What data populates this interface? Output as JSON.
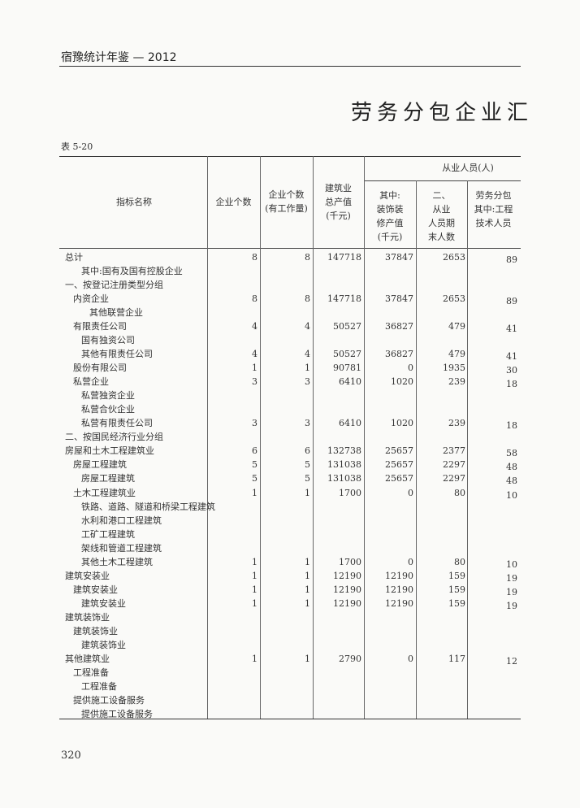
{
  "header": {
    "title": "宿豫统计年鉴 — 2012"
  },
  "title": "劳务分包企业汇",
  "table": {
    "label": "表 5-20",
    "group": "从业人员(人)",
    "columns": [
      [
        "指标名称"
      ],
      [
        "企业个数"
      ],
      [
        "企业个数",
        "(有工作量)"
      ],
      [
        "建筑业",
        "总产值",
        "(千元)"
      ],
      [
        "其中:",
        "装饰装",
        "修产值",
        "(千元)"
      ],
      [
        "二、",
        "从业",
        "人员期",
        "末人数"
      ],
      [
        "劳务分包",
        "其中:工程",
        "技术人员"
      ]
    ],
    "rows": [
      [
        "总计",
        8,
        8,
        147718,
        37847,
        2653,
        89
      ],
      [
        "其中:国有及国有控股企业",
        null,
        null,
        null,
        null,
        null,
        null
      ],
      [
        "一、按登记注册类型分组",
        null,
        null,
        null,
        null,
        null,
        null
      ],
      [
        "内资企业",
        8,
        8,
        147718,
        37847,
        2653,
        89
      ],
      [
        "其他联营企业",
        null,
        null,
        null,
        null,
        null,
        null
      ],
      [
        "有限责任公司",
        4,
        4,
        50527,
        36827,
        479,
        41
      ],
      [
        "国有独资公司",
        null,
        null,
        null,
        null,
        null,
        null
      ],
      [
        "其他有限责任公司",
        4,
        4,
        50527,
        36827,
        479,
        41
      ],
      [
        "股份有限公司",
        1,
        1,
        90781,
        0,
        1935,
        30
      ],
      [
        "私营企业",
        3,
        3,
        6410,
        1020,
        239,
        18
      ],
      [
        "私营独资企业",
        null,
        null,
        null,
        null,
        null,
        null
      ],
      [
        "私营合伙企业",
        null,
        null,
        null,
        null,
        null,
        null
      ],
      [
        "私营有限责任公司",
        3,
        3,
        6410,
        1020,
        239,
        18
      ],
      [
        "二、按国民经济行业分组",
        null,
        null,
        null,
        null,
        null,
        null
      ],
      [
        "房屋和土木工程建筑业",
        6,
        6,
        132738,
        25657,
        2377,
        58
      ],
      [
        "房屋工程建筑",
        5,
        5,
        131038,
        25657,
        2297,
        48
      ],
      [
        "房屋工程建筑",
        5,
        5,
        131038,
        25657,
        2297,
        48
      ],
      [
        "土木工程建筑业",
        1,
        1,
        1700,
        0,
        80,
        10
      ],
      [
        "铁路、道路、隧道和桥梁工程建筑",
        null,
        null,
        null,
        null,
        null,
        null
      ],
      [
        "水利和港口工程建筑",
        null,
        null,
        null,
        null,
        null,
        null
      ],
      [
        "工矿工程建筑",
        null,
        null,
        null,
        null,
        null,
        null
      ],
      [
        "架线和管道工程建筑",
        null,
        null,
        null,
        null,
        null,
        null
      ],
      [
        "其他土木工程建筑",
        1,
        1,
        1700,
        0,
        80,
        10
      ],
      [
        "建筑安装业",
        1,
        1,
        12190,
        12190,
        159,
        19
      ],
      [
        "建筑安装业",
        1,
        1,
        12190,
        12190,
        159,
        19
      ],
      [
        "建筑安装业",
        1,
        1,
        12190,
        12190,
        159,
        19
      ],
      [
        "建筑装饰业",
        null,
        null,
        null,
        null,
        null,
        null
      ],
      [
        "建筑装饰业",
        null,
        null,
        null,
        null,
        null,
        null
      ],
      [
        "建筑装饰业",
        null,
        null,
        null,
        null,
        null,
        null
      ],
      [
        "其他建筑业",
        1,
        1,
        2790,
        0,
        117,
        12
      ],
      [
        "工程准备",
        null,
        null,
        null,
        null,
        null,
        null
      ],
      [
        "工程准备",
        null,
        null,
        null,
        null,
        null,
        null
      ],
      [
        "提供施工设备服务",
        null,
        null,
        null,
        null,
        null,
        null
      ],
      [
        "提供施工设备服务",
        null,
        null,
        null,
        null,
        null,
        null
      ]
    ]
  },
  "page_number": "320"
}
